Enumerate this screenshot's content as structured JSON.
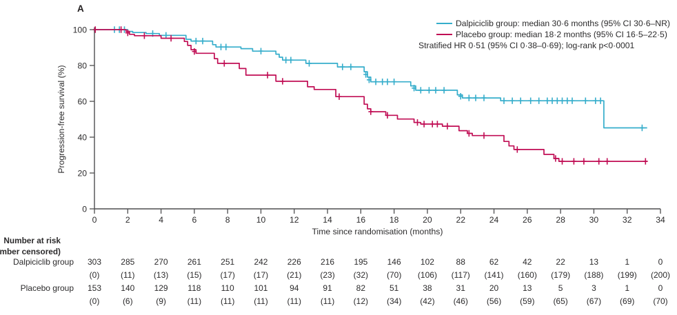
{
  "panel_label": "A",
  "colors": {
    "dalpiciclib": "#35adcb",
    "placebo": "#c00d54",
    "axis": "#4d4d4f",
    "text": "#2b2a2b"
  },
  "chart_data": {
    "type": "line",
    "subtype": "kaplan-meier-step",
    "title": "",
    "xlabel": "Time since randomisation (months)",
    "ylabel": "Progression-free survival (%)",
    "xlim": [
      0,
      34
    ],
    "ylim": [
      0,
      100
    ],
    "xticks": [
      0,
      2,
      4,
      6,
      8,
      10,
      12,
      14,
      16,
      18,
      20,
      22,
      24,
      26,
      28,
      30,
      32,
      34
    ],
    "yticks": [
      0,
      20,
      40,
      60,
      80,
      100
    ],
    "grid": false,
    "legend_position": "top-right",
    "legend": [
      {
        "name": "Dalpiciclib group",
        "label": "Dalpiciclib group: median 30·6 months (95% CI 30·6–NR)",
        "color": "#35adcb"
      },
      {
        "name": "Placebo group",
        "label": "Placebo group: median 18·2 months (95% CI 16·5–22·5)",
        "color": "#c00d54"
      }
    ],
    "annotation": "Stratified HR 0·51 (95% CI 0·38–0·69); log-rank p<0·0001",
    "series": [
      {
        "key": "dalpiciclib",
        "name": "Dalpiciclib group",
        "color": "#35adcb",
        "steps": [
          [
            0,
            100
          ],
          [
            1.9,
            100
          ],
          [
            2.0,
            99.0
          ],
          [
            2.3,
            98.4
          ],
          [
            3.1,
            97.8
          ],
          [
            3.9,
            96.8
          ],
          [
            5.5,
            94.6
          ],
          [
            5.8,
            93.6
          ],
          [
            7.1,
            91.6
          ],
          [
            7.3,
            90.3
          ],
          [
            8.8,
            89.4
          ],
          [
            9.5,
            88.0
          ],
          [
            10.9,
            86.3
          ],
          [
            11.1,
            84.6
          ],
          [
            11.3,
            83.0
          ],
          [
            12.7,
            81.2
          ],
          [
            14.6,
            79.2
          ],
          [
            16.2,
            76.5
          ],
          [
            16.4,
            73.5
          ],
          [
            16.6,
            70.9
          ],
          [
            19.0,
            68.6
          ],
          [
            19.3,
            66.2
          ],
          [
            21.8,
            63.6
          ],
          [
            22.1,
            61.9
          ],
          [
            24.4,
            60.3
          ],
          [
            30.6,
            45.2
          ],
          [
            33.2,
            45.2
          ]
        ],
        "censors": [
          [
            1.2,
            100
          ],
          [
            1.5,
            100
          ],
          [
            1.8,
            100
          ],
          [
            3.5,
            97.8
          ],
          [
            4.3,
            96.8
          ],
          [
            6.1,
            93.6
          ],
          [
            6.5,
            93.6
          ],
          [
            7.6,
            90.3
          ],
          [
            7.9,
            90.3
          ],
          [
            10.0,
            88.0
          ],
          [
            11.5,
            83.0
          ],
          [
            11.8,
            83.0
          ],
          [
            12.9,
            81.2
          ],
          [
            14.9,
            79.2
          ],
          [
            15.4,
            79.2
          ],
          [
            16.3,
            75.0
          ],
          [
            16.5,
            72.0
          ],
          [
            16.9,
            70.9
          ],
          [
            17.3,
            70.9
          ],
          [
            17.6,
            70.9
          ],
          [
            18.0,
            70.9
          ],
          [
            19.2,
            67.4
          ],
          [
            19.6,
            66.2
          ],
          [
            20.1,
            66.2
          ],
          [
            20.5,
            66.2
          ],
          [
            21.0,
            66.2
          ],
          [
            22.0,
            62.8
          ],
          [
            22.5,
            61.9
          ],
          [
            22.9,
            61.9
          ],
          [
            23.4,
            61.9
          ],
          [
            24.6,
            60.3
          ],
          [
            25.1,
            60.3
          ],
          [
            25.6,
            60.3
          ],
          [
            26.2,
            60.3
          ],
          [
            26.7,
            60.3
          ],
          [
            27.2,
            60.3
          ],
          [
            27.5,
            60.3
          ],
          [
            27.8,
            60.3
          ],
          [
            28.1,
            60.3
          ],
          [
            28.4,
            60.3
          ],
          [
            28.7,
            60.3
          ],
          [
            29.5,
            60.3
          ],
          [
            30.1,
            60.3
          ],
          [
            30.4,
            60.3
          ],
          [
            32.9,
            45.2
          ]
        ]
      },
      {
        "key": "placebo",
        "name": "Placebo group",
        "color": "#c00d54",
        "steps": [
          [
            0,
            100
          ],
          [
            1.8,
            100
          ],
          [
            1.9,
            99.0
          ],
          [
            2.1,
            97.4
          ],
          [
            2.4,
            96.6
          ],
          [
            4.0,
            95.2
          ],
          [
            5.4,
            93.4
          ],
          [
            5.6,
            91.2
          ],
          [
            5.8,
            88.8
          ],
          [
            6.1,
            86.8
          ],
          [
            7.2,
            83.8
          ],
          [
            7.4,
            81.2
          ],
          [
            8.7,
            78.3
          ],
          [
            9.1,
            74.6
          ],
          [
            10.9,
            71.2
          ],
          [
            12.8,
            68.1
          ],
          [
            13.2,
            66.6
          ],
          [
            14.5,
            62.6
          ],
          [
            16.2,
            58.4
          ],
          [
            16.4,
            55.8
          ],
          [
            16.6,
            54.2
          ],
          [
            17.5,
            52.2
          ],
          [
            18.2,
            50.1
          ],
          [
            19.2,
            48.2
          ],
          [
            19.6,
            47.3
          ],
          [
            20.9,
            46.1
          ],
          [
            21.9,
            43.6
          ],
          [
            22.4,
            42.1
          ],
          [
            22.7,
            40.9
          ],
          [
            24.6,
            37.6
          ],
          [
            24.9,
            35.1
          ],
          [
            25.2,
            33.1
          ],
          [
            27.0,
            30.4
          ],
          [
            27.6,
            28.1
          ],
          [
            27.9,
            26.5
          ],
          [
            33.2,
            26.5
          ]
        ],
        "censors": [
          [
            0.05,
            100
          ],
          [
            1.6,
            100
          ],
          [
            2.0,
            98.2
          ],
          [
            3.0,
            96.6
          ],
          [
            4.6,
            95.2
          ],
          [
            6.0,
            87.8
          ],
          [
            7.8,
            81.2
          ],
          [
            10.4,
            74.6
          ],
          [
            11.3,
            71.2
          ],
          [
            14.7,
            62.6
          ],
          [
            16.6,
            54.2
          ],
          [
            17.6,
            52.2
          ],
          [
            19.4,
            48.2
          ],
          [
            19.8,
            47.3
          ],
          [
            20.3,
            47.3
          ],
          [
            20.6,
            47.3
          ],
          [
            21.2,
            46.1
          ],
          [
            22.5,
            42.1
          ],
          [
            23.4,
            40.9
          ],
          [
            25.4,
            33.1
          ],
          [
            27.7,
            28.1
          ],
          [
            28.1,
            26.5
          ],
          [
            28.8,
            26.5
          ],
          [
            29.4,
            26.5
          ],
          [
            30.3,
            26.5
          ],
          [
            30.8,
            26.5
          ],
          [
            33.1,
            26.5
          ]
        ]
      }
    ]
  },
  "risk_table": {
    "header_line1": "Number at risk",
    "header_line2": "(number censored)",
    "time_points": [
      0,
      2,
      4,
      6,
      8,
      10,
      12,
      14,
      16,
      18,
      20,
      22,
      24,
      26,
      28,
      30,
      32,
      34
    ],
    "rows": [
      {
        "label": "Dalpiciclib group",
        "at_risk": [
          303,
          285,
          270,
          261,
          251,
          242,
          226,
          216,
          195,
          146,
          102,
          88,
          62,
          42,
          22,
          13,
          1,
          0
        ],
        "censored": [
          "(0)",
          "(11)",
          "(13)",
          "(15)",
          "(17)",
          "(17)",
          "(21)",
          "(23)",
          "(32)",
          "(70)",
          "(106)",
          "(117)",
          "(141)",
          "(160)",
          "(179)",
          "(188)",
          "(199)",
          "(200)"
        ]
      },
      {
        "label": "Placebo group",
        "at_risk": [
          153,
          140,
          129,
          118,
          110,
          101,
          94,
          91,
          82,
          51,
          38,
          31,
          20,
          13,
          5,
          3,
          1,
          0
        ],
        "censored": [
          "(0)",
          "(6)",
          "(9)",
          "(11)",
          "(11)",
          "(11)",
          "(11)",
          "(11)",
          "(12)",
          "(34)",
          "(42)",
          "(46)",
          "(56)",
          "(59)",
          "(65)",
          "(67)",
          "(69)",
          "(70)"
        ]
      }
    ]
  }
}
